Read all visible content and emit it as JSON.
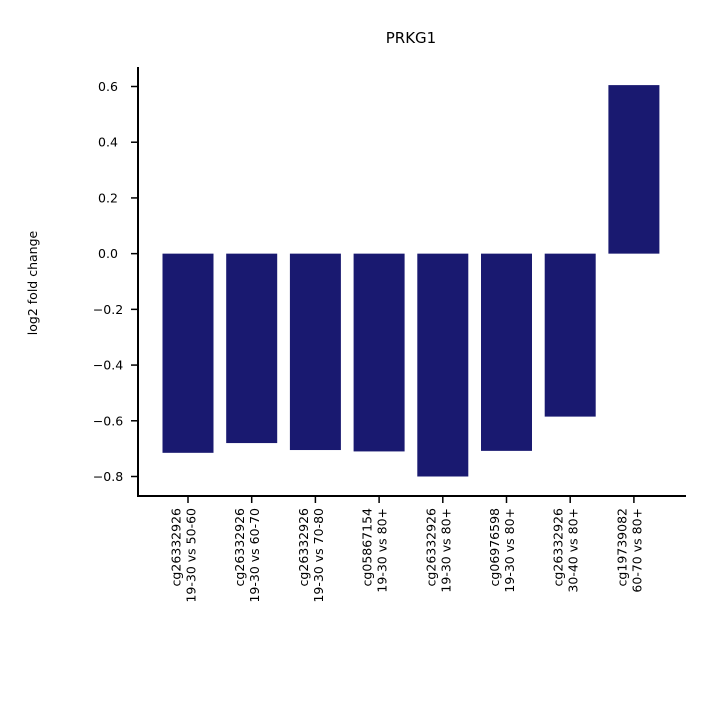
{
  "chart_data": {
    "type": "bar",
    "title": "PRKG1",
    "xlabel": "",
    "ylabel": "log2 fold change",
    "ylim": [
      -0.87,
      0.67
    ],
    "yticks": [
      -0.8,
      -0.6,
      -0.4,
      -0.2,
      0.0,
      0.2,
      0.4,
      0.6
    ],
    "ytick_labels": [
      "−0.8",
      "−0.6",
      "−0.4",
      "−0.2",
      "0.0",
      "0.2",
      "0.4",
      "0.6"
    ],
    "categories": [
      [
        "cg26332926",
        "19-30 vs 50-60"
      ],
      [
        "cg26332926",
        "19-30 vs 60-70"
      ],
      [
        "cg26332926",
        "19-30 vs 70-80"
      ],
      [
        "cg05867154",
        "19-30 vs 80+"
      ],
      [
        "cg26332926",
        "19-30 vs 80+"
      ],
      [
        "cg06976598",
        "19-30 vs 80+"
      ],
      [
        "cg26332926",
        "30-40 vs 80+"
      ],
      [
        "cg19739082",
        "60-70 vs 80+"
      ]
    ],
    "values": [
      -0.715,
      -0.68,
      -0.705,
      -0.71,
      -0.8,
      -0.708,
      -0.585,
      0.605
    ],
    "bar_color": "#191970",
    "grid": false
  }
}
